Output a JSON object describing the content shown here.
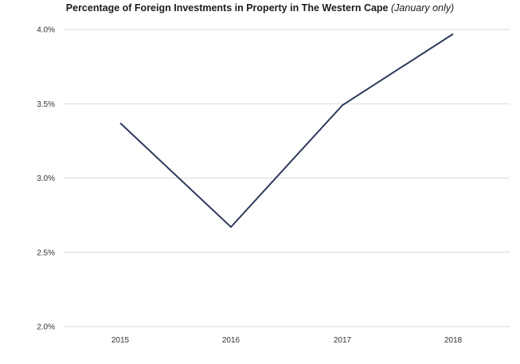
{
  "chart_data": {
    "type": "line",
    "title": "Percentage of Foreign Investments in Property in The Western Cape",
    "subtitle": "(January only)",
    "xlabel": "",
    "ylabel": "",
    "categories": [
      "2015",
      "2016",
      "2017",
      "2018"
    ],
    "series": [
      {
        "color": "#2e3b5c",
        "values": [
          3.37,
          2.67,
          3.49,
          3.97
        ]
      }
    ],
    "y_ticks": [
      2.0,
      2.5,
      3.0,
      3.5,
      4.0
    ],
    "y_tick_labels": [
      "2.0%",
      "2.5%",
      "3.0%",
      "3.5%",
      "4.0%"
    ],
    "ylim": [
      2.0,
      4.0
    ],
    "grid": true,
    "gridline_color": "#d9d9d9",
    "legend": "none"
  }
}
